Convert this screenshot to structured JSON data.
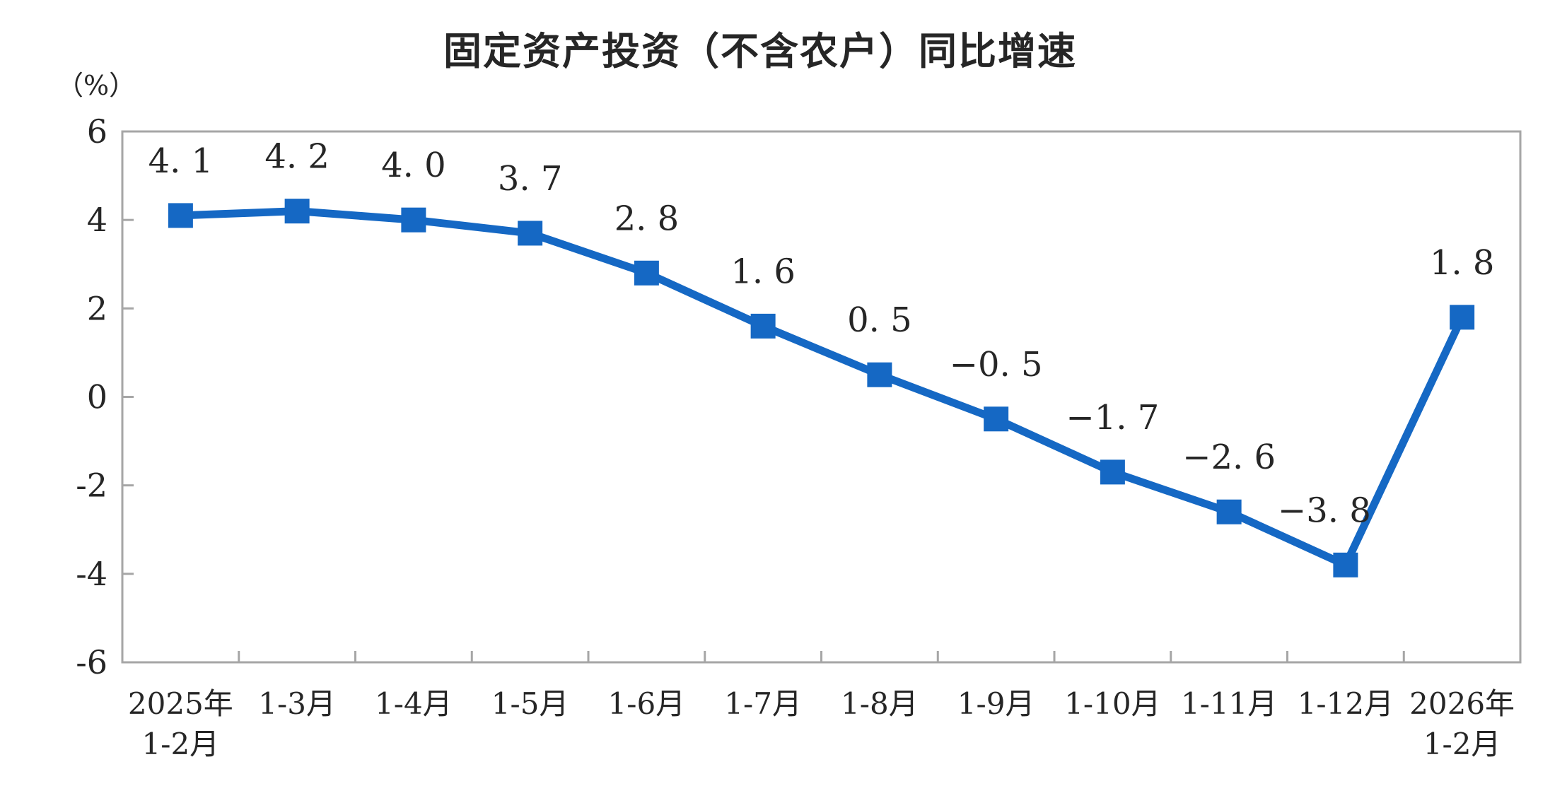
{
  "page": {
    "title": "固定资产投资（不含农户）同比增速",
    "unit_label": "（%）"
  },
  "chart_data": {
    "type": "line",
    "title": "固定资产投资（不含农户）同比增速",
    "ylabel": "（%）",
    "xlabel": "",
    "categories": [
      [
        "2025年",
        "1-2月"
      ],
      [
        "1-3月"
      ],
      [
        "1-4月"
      ],
      [
        "1-5月"
      ],
      [
        "1-6月"
      ],
      [
        "1-7月"
      ],
      [
        "1-8月"
      ],
      [
        "1-9月"
      ],
      [
        "1-10月"
      ],
      [
        "1-11月"
      ],
      [
        "1-12月"
      ],
      [
        "2026年",
        "1-2月"
      ]
    ],
    "values": [
      4.1,
      4.2,
      4.0,
      3.7,
      2.8,
      1.6,
      0.5,
      -0.5,
      -1.7,
      -2.6,
      -3.8,
      1.8
    ],
    "point_labels": [
      "4. 1",
      "4. 2",
      "4. 0",
      "3. 7",
      "2. 8",
      "1. 6",
      "0. 5",
      "−0. 5",
      "−1. 7",
      "−2. 6",
      "−3. 8",
      "1. 8"
    ],
    "label_dx": [
      0,
      0,
      0,
      0,
      0,
      0,
      0,
      0,
      0,
      0,
      -30,
      0
    ],
    "y_ticks": [
      6,
      4,
      2,
      0,
      -2,
      -4,
      -6
    ],
    "y_tick_labels": [
      "6",
      "4",
      "2",
      "0",
      "-2",
      "-4",
      "-6"
    ],
    "ylim": [
      -6,
      6
    ],
    "grid": false,
    "legend": "none",
    "marker": "square",
    "colors": {
      "line": "#1568c4",
      "marker": "#1568c4",
      "axis": "#a6a6a6",
      "text": "#262626"
    }
  }
}
